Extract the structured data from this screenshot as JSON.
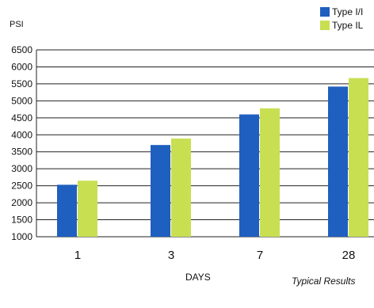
{
  "chart_data": {
    "type": "bar",
    "categories": [
      "1",
      "3",
      "7",
      "28"
    ],
    "series": [
      {
        "name": "Type I/I",
        "color": "#1f5fbf",
        "values": [
          2530,
          3700,
          4600,
          5420
        ]
      },
      {
        "name": "Type IL",
        "color": "#c8df52",
        "values": [
          2650,
          3890,
          4780,
          5670
        ]
      }
    ],
    "yticks": [
      1000,
      1500,
      2000,
      2500,
      3000,
      3500,
      4000,
      4500,
      5000,
      5500,
      6000,
      6500
    ],
    "ylim": [
      1000,
      6500
    ],
    "ylabel": "PSI",
    "xlabel": "DAYS",
    "note": "Typical Results",
    "grid": true,
    "legend": "top-right"
  }
}
